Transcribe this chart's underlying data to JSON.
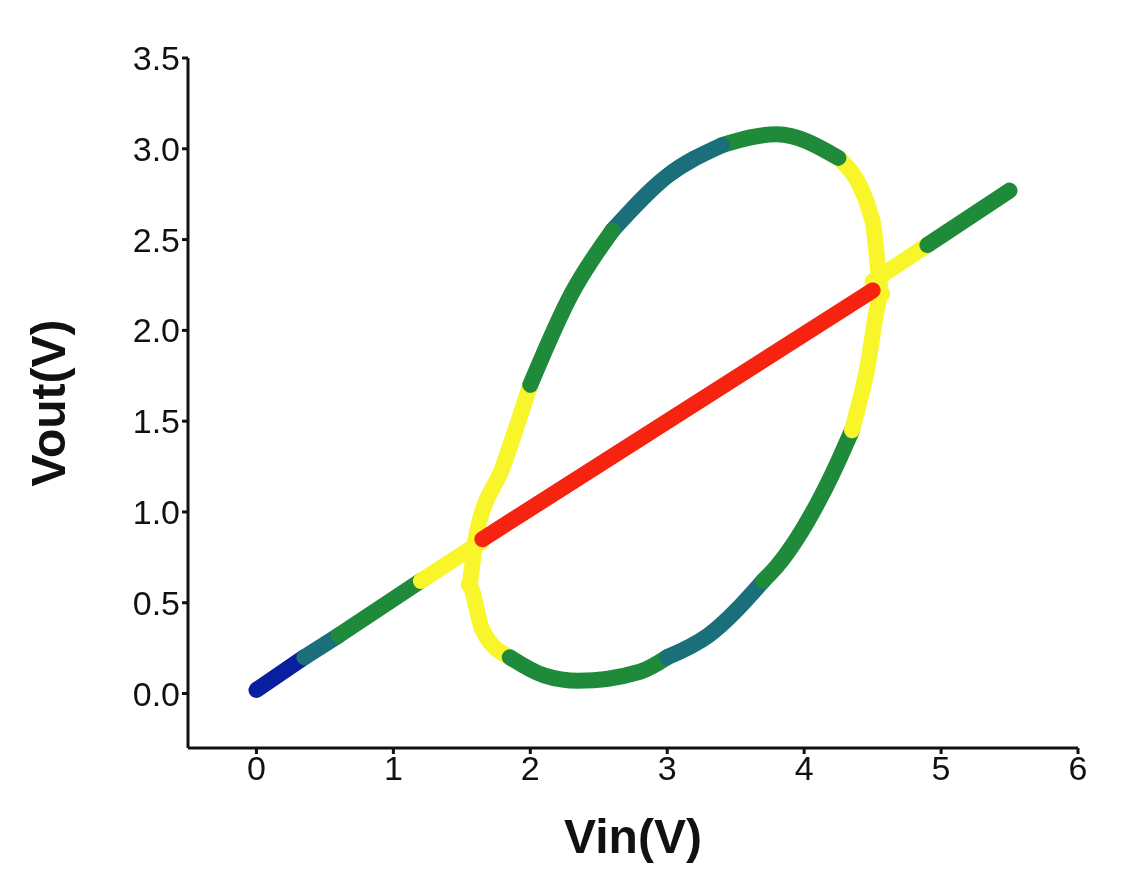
{
  "chart_data": {
    "type": "line",
    "xlabel": "Vin(V)",
    "ylabel": "Vout(V)",
    "xlim": [
      -0.5,
      6
    ],
    "ylim": [
      -0.3,
      3.5
    ],
    "xticks": [
      0,
      1,
      2,
      3,
      4,
      5,
      6
    ],
    "yticks": [
      {
        "value": 0,
        "label": "0.0"
      },
      {
        "value": 0.5,
        "label": "0.5"
      },
      {
        "value": 1,
        "label": "1.0"
      },
      {
        "value": 1.5,
        "label": "1.5"
      },
      {
        "value": 2,
        "label": "2.0"
      },
      {
        "value": 2.5,
        "label": "2.5"
      },
      {
        "value": 3,
        "label": "3.0"
      },
      {
        "value": 3.5,
        "label": "3.5"
      }
    ],
    "marker": "none",
    "line_style": "solid",
    "series": [
      {
        "color": "#0a1fa0",
        "x": [
          0,
          0.35
        ],
        "values": [
          0.02,
          0.2
        ]
      },
      {
        "color": "#1a6f7a",
        "x": [
          0.35,
          0.6
        ],
        "values": [
          0.2,
          0.32
        ]
      },
      {
        "color": "#1f8a3a",
        "x": [
          0.6,
          1.2
        ],
        "values": [
          0.32,
          0.62
        ]
      },
      {
        "color": "#f8f52a",
        "x": [
          1.2,
          1.65
        ],
        "values": [
          0.62,
          0.84
        ]
      },
      {
        "color": "#f8f52a",
        "x": [
          4.5,
          4.9
        ],
        "values": [
          2.27,
          2.47
        ]
      },
      {
        "color": "#1f8a3a",
        "x": [
          4.9,
          5.5
        ],
        "values": [
          2.47,
          2.77
        ]
      },
      {
        "color": "#f8f52a",
        "x": [
          2.0,
          1.8,
          1.6,
          1.55,
          1.65,
          1.85
        ],
        "values": [
          1.7,
          1.25,
          0.85,
          0.6,
          0.35,
          0.2
        ]
      },
      {
        "color": "#1f8a3a",
        "x": [
          1.85,
          2.1,
          2.35,
          2.8,
          3.0
        ],
        "values": [
          0.2,
          0.1,
          0.07,
          0.12,
          0.2
        ]
      },
      {
        "color": "#1a6f7a",
        "x": [
          3.0,
          3.3,
          3.7
        ],
        "values": [
          0.2,
          0.32,
          0.62
        ]
      },
      {
        "color": "#1f8a3a",
        "x": [
          3.7,
          3.8,
          4.2,
          4.35
        ],
        "values": [
          0.62,
          0.7,
          1.2,
          1.45
        ]
      },
      {
        "color": "#f8f52a",
        "x": [
          4.35,
          4.45,
          4.57,
          4.5,
          4.25
        ],
        "values": [
          1.45,
          1.75,
          2.2,
          2.6,
          2.95
        ]
      },
      {
        "color": "#1f8a3a",
        "x": [
          4.25,
          3.8,
          3.4
        ],
        "values": [
          2.95,
          3.08,
          3.02
        ]
      },
      {
        "color": "#1a6f7a",
        "x": [
          3.4,
          3.0,
          2.6
        ],
        "values": [
          3.02,
          2.85,
          2.55
        ]
      },
      {
        "color": "#1f8a3a",
        "x": [
          2.6,
          2.3,
          2.0
        ],
        "values": [
          2.55,
          2.2,
          1.7
        ]
      },
      {
        "color": "#f5230f",
        "x": [
          1.65,
          4.5
        ],
        "values": [
          0.85,
          2.22
        ]
      }
    ]
  }
}
